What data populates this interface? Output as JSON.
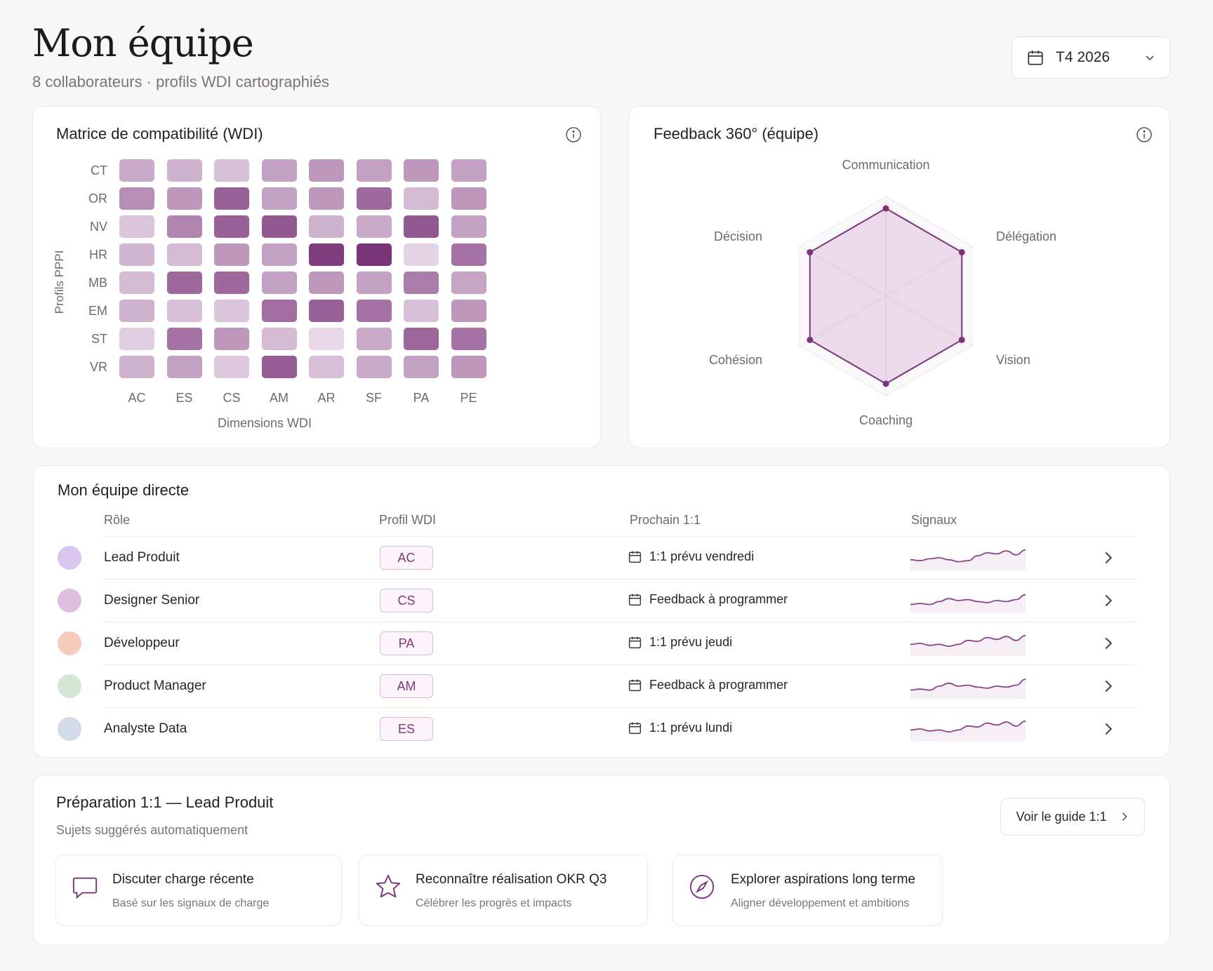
{
  "header": {
    "title": "Mon équipe",
    "subtitle": "8 collaborateurs · profils WDI cartographiés",
    "period": "T4 2026"
  },
  "matrix": {
    "title": "Matrice de compatibilité (WDI)",
    "ylabel": "Profils PPPI",
    "xlabel": "Dimensions WDI",
    "rows": [
      "CT",
      "OR",
      "NV",
      "HR",
      "MB",
      "EM",
      "ST",
      "VR"
    ],
    "cols": [
      "AC",
      "ES",
      "CS",
      "AM",
      "AR",
      "SF",
      "PA",
      "PE"
    ],
    "values": [
      [
        0.35,
        0.3,
        0.22,
        0.4,
        0.45,
        0.4,
        0.45,
        0.4
      ],
      [
        0.5,
        0.45,
        0.75,
        0.4,
        0.45,
        0.7,
        0.25,
        0.45
      ],
      [
        0.2,
        0.55,
        0.75,
        0.8,
        0.3,
        0.35,
        0.8,
        0.4
      ],
      [
        0.28,
        0.25,
        0.45,
        0.4,
        0.95,
        1.0,
        0.12,
        0.65
      ],
      [
        0.25,
        0.7,
        0.7,
        0.4,
        0.45,
        0.4,
        0.6,
        0.38
      ],
      [
        0.3,
        0.22,
        0.2,
        0.68,
        0.75,
        0.65,
        0.22,
        0.45
      ],
      [
        0.15,
        0.65,
        0.45,
        0.25,
        0.1,
        0.35,
        0.72,
        0.65
      ],
      [
        0.3,
        0.4,
        0.18,
        0.78,
        0.22,
        0.35,
        0.4,
        0.45
      ]
    ]
  },
  "feedback": {
    "title": "Feedback 360° (équipe)",
    "axes": [
      "Communication",
      "Délégation",
      "Vision",
      "Coaching",
      "Cohésion",
      "Décision"
    ],
    "values": [
      0.88,
      0.88,
      0.88,
      0.88,
      0.88,
      0.88
    ],
    "max": 1
  },
  "team": {
    "title": "Mon équipe directe",
    "headers": {
      "role": "Rôle",
      "profile": "Profil WDI",
      "next": "Prochain 1:1",
      "signals": "Signaux"
    },
    "members": [
      {
        "role": "Lead Produit",
        "profile": "AC",
        "next": "1:1 prévu vendredi",
        "avatar_color": "#d9c6ef",
        "signals": [
          8,
          7,
          9,
          10,
          8,
          6,
          7,
          12,
          15,
          14,
          17,
          13,
          18
        ]
      },
      {
        "role": "Designer Senior",
        "profile": "CS",
        "next": "Feedback à programmer",
        "avatar_color": "#ddc0e0",
        "signals": [
          6,
          7,
          6,
          9,
          12,
          10,
          11,
          9,
          8,
          10,
          9,
          11,
          16
        ]
      },
      {
        "role": "Développeur",
        "profile": "PA",
        "next": "1:1 prévu jeudi",
        "avatar_color": "#f5cbbc",
        "signals": [
          9,
          10,
          8,
          9,
          7,
          9,
          13,
          12,
          16,
          14,
          17,
          13,
          18
        ]
      },
      {
        "role": "Product Manager",
        "profile": "AM",
        "next": "Feedback à programmer",
        "avatar_color": "#d4e7d4",
        "signals": [
          6,
          7,
          6,
          10,
          13,
          10,
          11,
          9,
          8,
          10,
          9,
          11,
          17
        ]
      },
      {
        "role": "Analyste Data",
        "profile": "ES",
        "next": "1:1 prévu lundi",
        "avatar_color": "#d3dbe8",
        "signals": [
          9,
          10,
          8,
          9,
          7,
          9,
          13,
          12,
          16,
          14,
          17,
          13,
          18
        ]
      }
    ]
  },
  "prep": {
    "title": "Préparation 1:1 — Lead Produit",
    "subtitle": "Sujets suggérés automatiquement",
    "guide_label": "Voir le guide 1:1",
    "topics": [
      {
        "title": "Discuter charge récente",
        "subtitle": "Basé sur les signaux de charge",
        "icon": "chat-bubble-icon"
      },
      {
        "title": "Reconnaître réalisation OKR Q3",
        "subtitle": "Célébrer les progrès et impacts",
        "icon": "star-icon"
      },
      {
        "title": "Explorer aspirations long terme",
        "subtitle": "Aligner développement et ambitions",
        "icon": "compass-icon"
      }
    ]
  },
  "colors": {
    "accent": "#7a3478",
    "accent_light": "#c9a2c8",
    "card_border": "#ece8ea"
  }
}
